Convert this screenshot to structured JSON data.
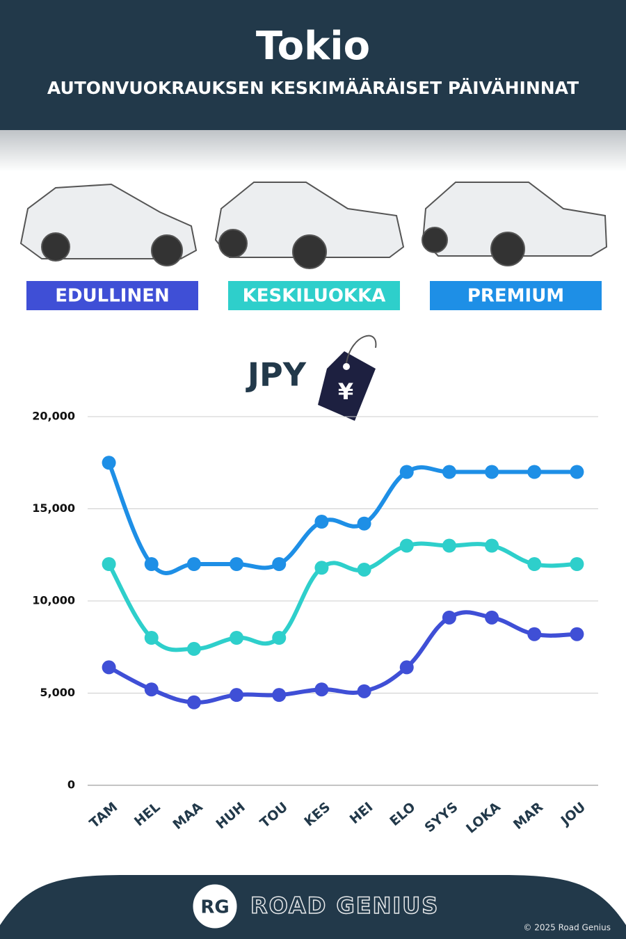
{
  "chart_data": {
    "type": "line",
    "title": "Tokio",
    "subtitle": "AUTONVUOKRAUKSEN KESKIMÄÄRÄISET PÄIVÄHINNAT",
    "unit_label": "JPY",
    "categories": [
      "TAM",
      "HEL",
      "MAA",
      "HUH",
      "TOU",
      "KES",
      "HEI",
      "ELO",
      "SYYS",
      "LOKA",
      "MAR",
      "JOU"
    ],
    "series": [
      {
        "name": "EDULLINEN",
        "color": "#3f4fd6",
        "values": [
          6400,
          5200,
          4500,
          4900,
          4900,
          5200,
          5100,
          6400,
          9100,
          9100,
          8200,
          8200
        ]
      },
      {
        "name": "KESKILUOKKA",
        "color": "#2ecfcb",
        "values": [
          12000,
          8000,
          7400,
          8000,
          8000,
          11800,
          11700,
          13000,
          13000,
          13000,
          12000,
          12000
        ]
      },
      {
        "name": "PREMIUM",
        "color": "#1e8fe6",
        "values": [
          17500,
          12000,
          12000,
          12000,
          12000,
          14300,
          14200,
          17000,
          17000,
          17000,
          17000,
          17000
        ]
      }
    ],
    "ylim": [
      0,
      20000
    ],
    "yticks": [
      0,
      {
        "value": 5000,
        "label": "5,000"
      },
      {
        "value": 10000,
        "label": "10,000"
      },
      {
        "value": 15000,
        "label": "15,000"
      },
      {
        "value": 20000,
        "label": "20,000"
      }
    ],
    "grid": true,
    "brand": "ROAD GENIUS",
    "logo": "RG",
    "copyright": "© 2025 Road Genius"
  }
}
